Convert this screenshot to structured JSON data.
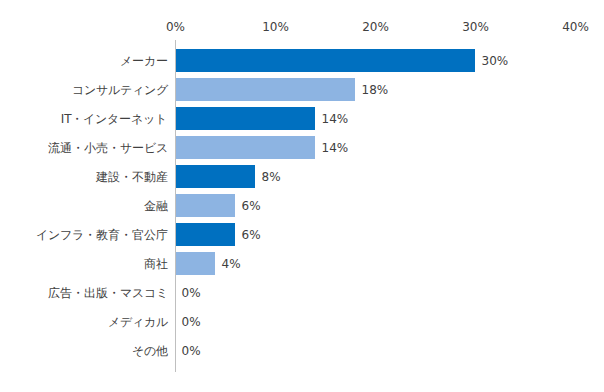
{
  "chart_data": {
    "type": "bar",
    "orientation": "horizontal",
    "categories": [
      "メーカー",
      "コンサルティング",
      "IT・インターネット",
      "流通・小売・サービス",
      "建設・不動産",
      "金融",
      "インフラ・教育・官公庁",
      "商社",
      "広告・出版・マスコミ",
      "メディカル",
      "その他"
    ],
    "values": [
      30,
      18,
      14,
      14,
      8,
      6,
      6,
      4,
      0,
      0,
      0
    ],
    "value_labels": [
      "30%",
      "18%",
      "14%",
      "14%",
      "8%",
      "6%",
      "6%",
      "4%",
      "0%",
      "0%",
      "0%"
    ],
    "colors": [
      "#0070c0",
      "#8db4e2",
      "#0070c0",
      "#8db4e2",
      "#0070c0",
      "#8db4e2",
      "#0070c0",
      "#8db4e2",
      "#0070c0",
      "#8db4e2",
      "#0070c0"
    ],
    "xlim": [
      0,
      40
    ],
    "xticks": [
      {
        "value": 0,
        "label": "0%"
      },
      {
        "value": 10,
        "label": "10%"
      },
      {
        "value": 20,
        "label": "20%"
      },
      {
        "value": 30,
        "label": "30%"
      },
      {
        "value": 40,
        "label": "40%"
      }
    ],
    "grid": false,
    "data_labels": true
  }
}
